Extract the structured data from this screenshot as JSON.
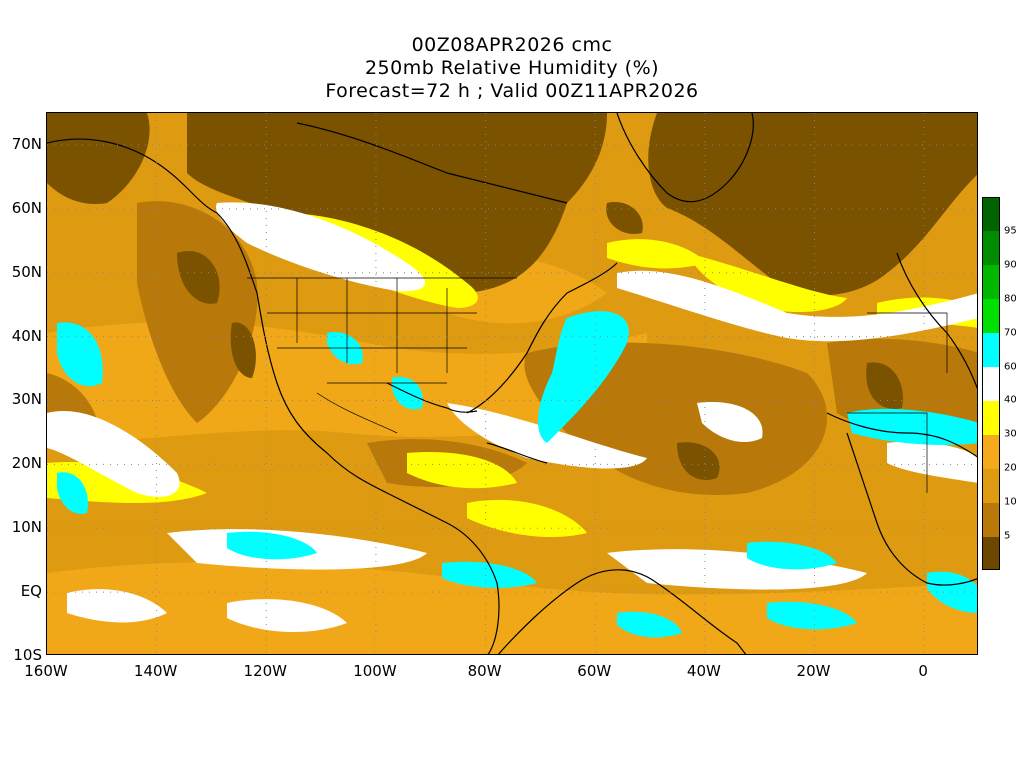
{
  "title": {
    "line1": "00Z08APR2026 cmc",
    "line2": "250mb Relative Humidity (%)",
    "line3": "Forecast=72 h ; Valid 00Z11APR2026"
  },
  "axes": {
    "lat_labels": [
      "70N",
      "60N",
      "50N",
      "40N",
      "30N",
      "20N",
      "10N",
      "EQ",
      "10S"
    ],
    "lat_values": [
      70,
      60,
      50,
      40,
      30,
      20,
      10,
      0,
      -10
    ],
    "lon_labels": [
      "160W",
      "140W",
      "120W",
      "100W",
      "80W",
      "60W",
      "40W",
      "20W",
      "0"
    ],
    "lon_values": [
      -160,
      -140,
      -120,
      -100,
      -80,
      -60,
      -40,
      -20,
      0
    ],
    "lon_range": [
      -160,
      10
    ],
    "lat_range": [
      -10,
      75
    ]
  },
  "colorbar": {
    "levels": [
      "5",
      "10",
      "20",
      "30",
      "40",
      "60",
      "70",
      "80",
      "90",
      "95"
    ],
    "colors": [
      "#6b4700",
      "#b8780a",
      "#de9a10",
      "#f5aa1c",
      "#ffff00",
      "#ffffff",
      "#00ffff",
      "#00e000",
      "#00b800",
      "#008c00",
      "#006400"
    ]
  },
  "colors": {
    "vdry": "#7a5200",
    "dry": "#b8780a",
    "mid": "#de9a10",
    "light": "#f0a818",
    "yellow": "#ffff00",
    "white": "#ffffff",
    "cyan": "#00ffff",
    "coast": "#000000",
    "grid": "#888888"
  }
}
